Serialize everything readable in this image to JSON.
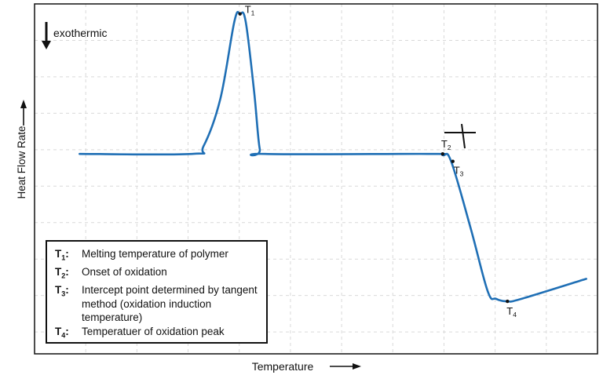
{
  "chart_data": {
    "type": "line",
    "title": "",
    "xlabel": "Temperature",
    "ylabel": "Heat Flow Rate",
    "direction_note": "exothermic",
    "grid": true,
    "series": [
      {
        "color": "#1f6fb5",
        "x": [
          0.08,
          0.28,
          0.3,
          0.33,
          0.355,
          0.365,
          0.375,
          0.39,
          0.4,
          0.41,
          0.7,
          0.725,
          0.74,
          0.775,
          0.805,
          0.82,
          0.84,
          0.865,
          0.98
        ],
        "y": [
          0.3,
          0.3,
          0.33,
          0.52,
          0.83,
          0.86,
          0.83,
          0.55,
          0.32,
          0.3,
          0.3,
          0.295,
          0.27,
          0.0,
          -0.25,
          -0.28,
          -0.29,
          -0.28,
          -0.2
        ]
      }
    ],
    "annotations": [
      {
        "id": "T",
        "sub": "1",
        "x": 0.365,
        "y": 0.86
      },
      {
        "id": "T",
        "sub": "2",
        "x": 0.725,
        "y": 0.3
      },
      {
        "id": "T",
        "sub": "3",
        "x": 0.743,
        "y": 0.27
      },
      {
        "id": "T",
        "sub": "4",
        "x": 0.84,
        "y": -0.29
      }
    ]
  },
  "legend": [
    {
      "key": "T",
      "sub": "1",
      "text": "Melting temperature of polymer"
    },
    {
      "key": "T",
      "sub": "2",
      "text": "Onset of oxidation"
    },
    {
      "key": "T",
      "sub": "3",
      "text": "Intercept point determined by tangent method (oxidation induction temperature)"
    },
    {
      "key": "T",
      "sub": "4",
      "text": "Temperatuer of oxidation peak"
    }
  ]
}
